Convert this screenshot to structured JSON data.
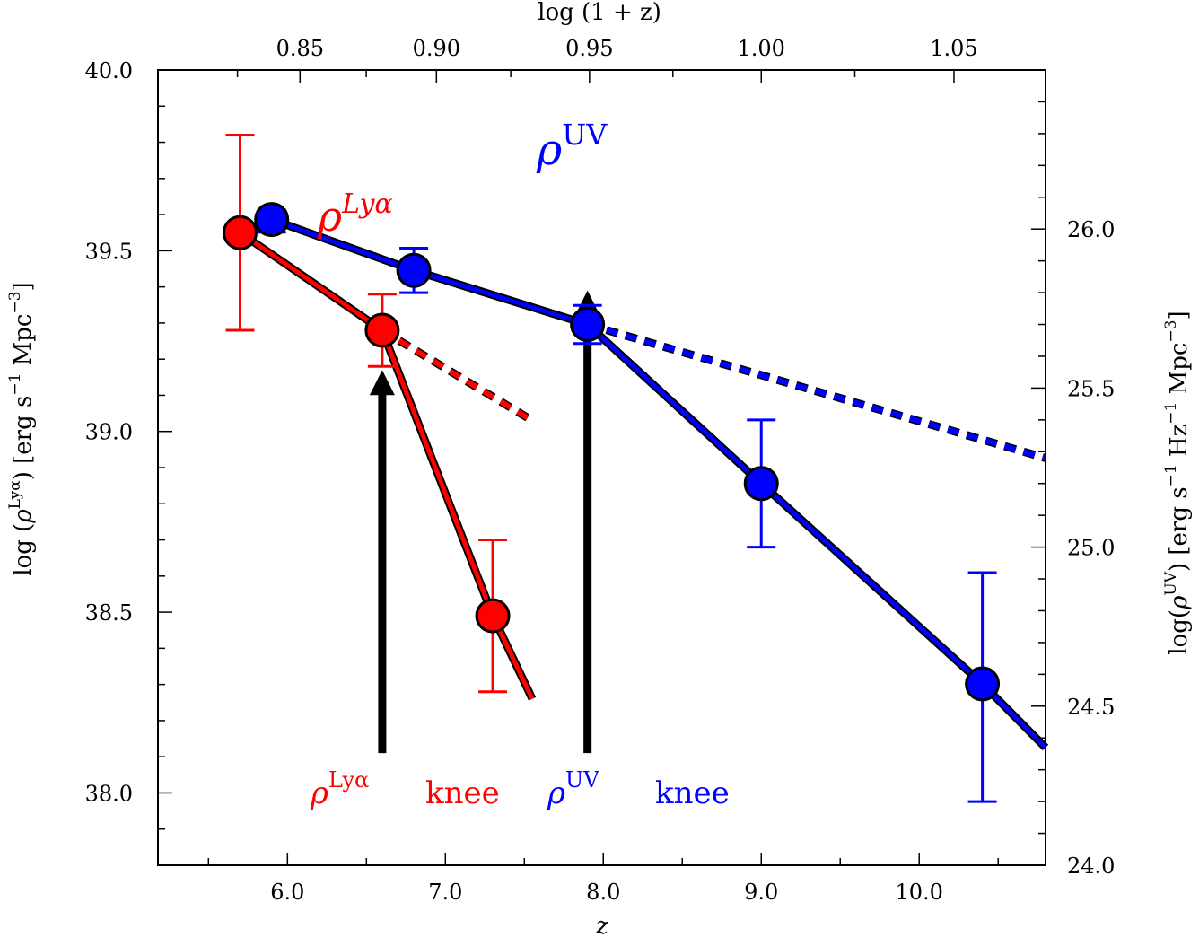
{
  "chart_data": {
    "type": "line",
    "xlabel": "z",
    "top_xlabel": "log (1 + z)",
    "ylabel_left": {
      "prefix": "log (",
      "rho": "ρ",
      "sup": "Lyα",
      "suffix": ") [erg s",
      "exp1": "−1",
      "mid": " Mpc",
      "exp3": "−3",
      "end": "]"
    },
    "ylabel_right": {
      "prefix": "log(",
      "rho": "ρ",
      "sup": "UV",
      "suffix": ") [erg s",
      "exp1": "−1",
      "mid": " Hz",
      "exp1b": "−1",
      "mid2": " Mpc",
      "exp3": "−3",
      "end": "]"
    },
    "xlim": [
      5.18,
      10.8
    ],
    "ylim_left": [
      37.8,
      40.0
    ],
    "ylim_right": [
      24.0,
      26.5
    ],
    "x_ticks": [
      6.0,
      7.0,
      8.0,
      9.0,
      10.0
    ],
    "x_tick_labels": [
      "6.0",
      "7.0",
      "8.0",
      "9.0",
      "10.0"
    ],
    "top_ticks": [
      0.85,
      0.9,
      0.95,
      1.0,
      1.05
    ],
    "top_tick_labels": [
      "0.85",
      "0.90",
      "0.95",
      "1.00",
      "1.05"
    ],
    "left_ticks": [
      38.0,
      38.5,
      39.0,
      39.5,
      40.0
    ],
    "left_tick_labels": [
      "38.0",
      "38.5",
      "39.0",
      "39.5",
      "40.0"
    ],
    "right_ticks": [
      24.0,
      24.5,
      25.0,
      25.5,
      26.0
    ],
    "right_tick_labels": [
      "24.0",
      "24.5",
      "25.0",
      "25.5",
      "26.0"
    ],
    "series": [
      {
        "name": "rho_Lya",
        "axis": "left",
        "color": "#ff0000",
        "points": [
          {
            "x": 5.7,
            "y": 39.55,
            "yerr_low": 39.28,
            "yerr_high": 39.82
          },
          {
            "x": 6.6,
            "y": 39.28,
            "yerr_low": 39.18,
            "yerr_high": 39.38
          },
          {
            "x": 7.3,
            "y": 38.49,
            "yerr_low": 38.28,
            "yerr_high": 38.7
          }
        ],
        "solid_line": [
          [
            5.7,
            39.55
          ],
          [
            6.6,
            39.28
          ],
          [
            7.3,
            38.49
          ],
          [
            7.55,
            38.26
          ]
        ],
        "dashed_line": [
          [
            6.6,
            39.28
          ],
          [
            7.55,
            39.03
          ]
        ]
      },
      {
        "name": "rho_UV",
        "axis": "right",
        "color": "#0000ff",
        "points": [
          {
            "x": 5.9,
            "y": 26.03,
            "yerr_low": 25.99,
            "yerr_high": 26.06
          },
          {
            "x": 6.8,
            "y": 25.87,
            "yerr_low": 25.8,
            "yerr_high": 25.94
          },
          {
            "x": 7.9,
            "y": 25.7,
            "yerr_low": 25.64,
            "yerr_high": 25.76
          },
          {
            "x": 9.0,
            "y": 25.2,
            "yerr_low": 25.0,
            "yerr_high": 25.4
          },
          {
            "x": 10.4,
            "y": 24.57,
            "yerr_low": 24.2,
            "yerr_high": 24.92
          }
        ],
        "solid_line": [
          [
            5.9,
            26.03
          ],
          [
            6.8,
            25.87
          ],
          [
            7.9,
            25.7
          ],
          [
            9.0,
            25.2
          ],
          [
            10.4,
            24.57
          ],
          [
            10.8,
            24.37
          ]
        ],
        "dashed_line": [
          [
            7.9,
            25.7
          ],
          [
            10.8,
            25.28
          ]
        ]
      }
    ],
    "arrows": [
      {
        "name": "lya-knee-arrow",
        "x": 6.6,
        "y_from": 38.11,
        "y_to": 39.17,
        "axis": "left"
      },
      {
        "name": "uv-knee-arrow",
        "x": 7.9,
        "y_from": 38.11,
        "y_to": 39.39,
        "axis": "left"
      }
    ],
    "annotations": {
      "rho_uv_label": {
        "rho": "ρ",
        "sup": "UV"
      },
      "rho_lya_label": {
        "rho": "ρ",
        "sup": "Lyα"
      },
      "knee_lya": {
        "rho": "ρ",
        "sup": "Lyα",
        "word": "knee"
      },
      "knee_uv": {
        "rho": "ρ",
        "sup": "UV",
        "word": "knee"
      }
    }
  },
  "colors": {
    "lya": "#ff0000",
    "uv": "#0000ff",
    "axis": "#000000",
    "arrow": "#000000"
  }
}
